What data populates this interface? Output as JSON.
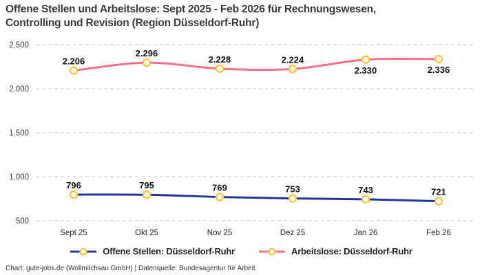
{
  "title": {
    "line1": "Offene Stellen und Arbeitslose: Sept 2025 - Feb 2026 für Rechnungswesen,",
    "line2": "Controlling und Revision (Region Düsseldorf-Ruhr)"
  },
  "footer": "Chart: gute-jobs.de (Wollmilchsau GmbH) | Datenquelle: Bundesagentur für Arbeit",
  "chart_data": {
    "type": "line",
    "title": "Offene Stellen und Arbeitslose: Sept 2025 - Feb 2026 für Rechnungswesen, Controlling und Revision (Region Düsseldorf-Ruhr)",
    "categories": [
      "Sept 25",
      "Okt 25",
      "Nov 25",
      "Dez 25",
      "Jan 26",
      "Feb 26"
    ],
    "series": [
      {
        "name": "Offene Stellen: Düsseldorf-Ruhr",
        "color": "#223795",
        "values": [
          796,
          795,
          769,
          753,
          743,
          721
        ],
        "point_labels": [
          "796",
          "795",
          "769",
          "753",
          "743",
          "721"
        ],
        "label_positions": [
          "above",
          "above",
          "above",
          "above",
          "above",
          "above"
        ]
      },
      {
        "name": "Arbeitslose: Düsseldorf-Ruhr",
        "color": "#F8708C",
        "values": [
          2206,
          2296,
          2228,
          2224,
          2330,
          2336
        ],
        "point_labels": [
          "2.206",
          "2.296",
          "2.228",
          "2.224",
          "2.330",
          "2.336"
        ],
        "label_positions": [
          "above",
          "above",
          "above",
          "above",
          "below",
          "below"
        ]
      }
    ],
    "ylim": [
      500,
      2500
    ],
    "yticks": [
      {
        "value": 2500,
        "label": "2.500"
      },
      {
        "value": 2000,
        "label": "2.000"
      },
      {
        "value": 1500,
        "label": "1.500"
      },
      {
        "value": 1000,
        "label": "1.000"
      },
      {
        "value": 500,
        "label": "500"
      }
    ],
    "marker": {
      "fill": "#FFFFFF",
      "stroke": "#FFC542"
    },
    "grid": {
      "style": "dashed",
      "color": "#CBCBCB"
    },
    "legend_position": "bottom",
    "colors": {
      "axis_label": "#3d3d3d",
      "category_label": "#2a2a2a",
      "data_label": "#151515"
    }
  }
}
